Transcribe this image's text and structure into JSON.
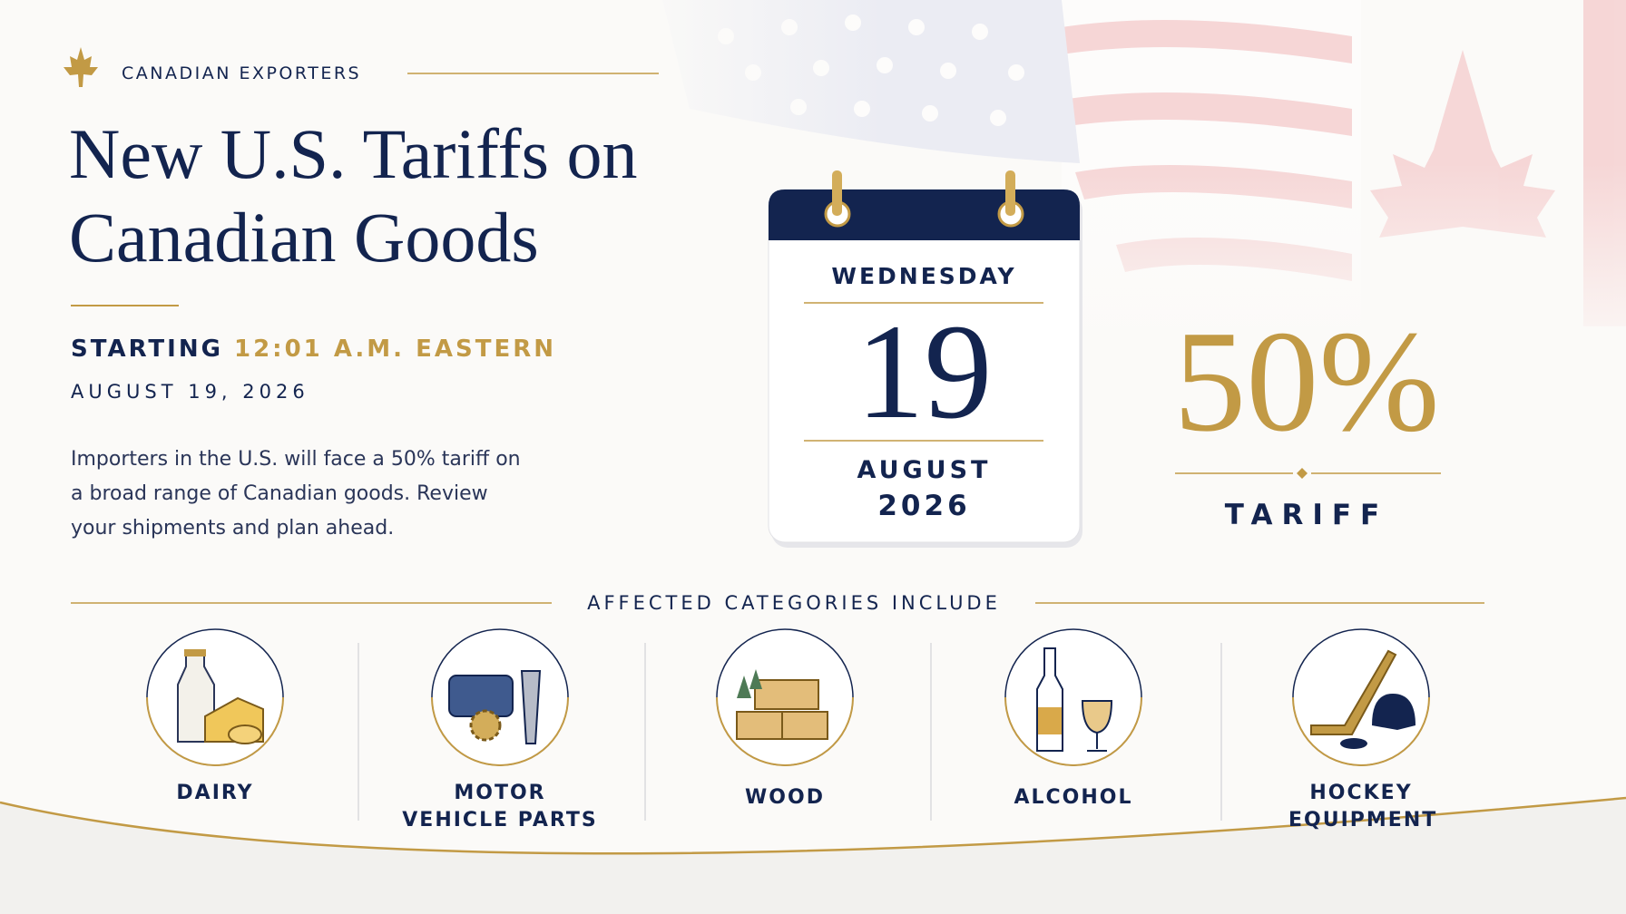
{
  "header": {
    "eyebrow": "CANADIAN EXPORTERS",
    "title_lines": [
      "New U.S. Tariffs on",
      "Canadian Goods"
    ]
  },
  "start": {
    "prefix": "STARTING",
    "time": "12:01 A.M. EASTERN",
    "date": "AUGUST 19, 2026"
  },
  "body": "Importers in the U.S. will face a 50% tariff on a broad range of Canadian goods. Review your shipments and plan ahead.",
  "calendar": {
    "weekday": "WEDNESDAY",
    "day": "19",
    "month": "AUGUST",
    "year": "2026"
  },
  "rate": {
    "value": "50%",
    "label": "TARIFF"
  },
  "categories": {
    "heading": "AFFECTED CATEGORIES INCLUDE",
    "items": [
      "DAIRY",
      "MOTOR VEHICLE PARTS",
      "WOOD",
      "ALCOHOL",
      "HOCKEY EQUIPMENT"
    ]
  }
}
